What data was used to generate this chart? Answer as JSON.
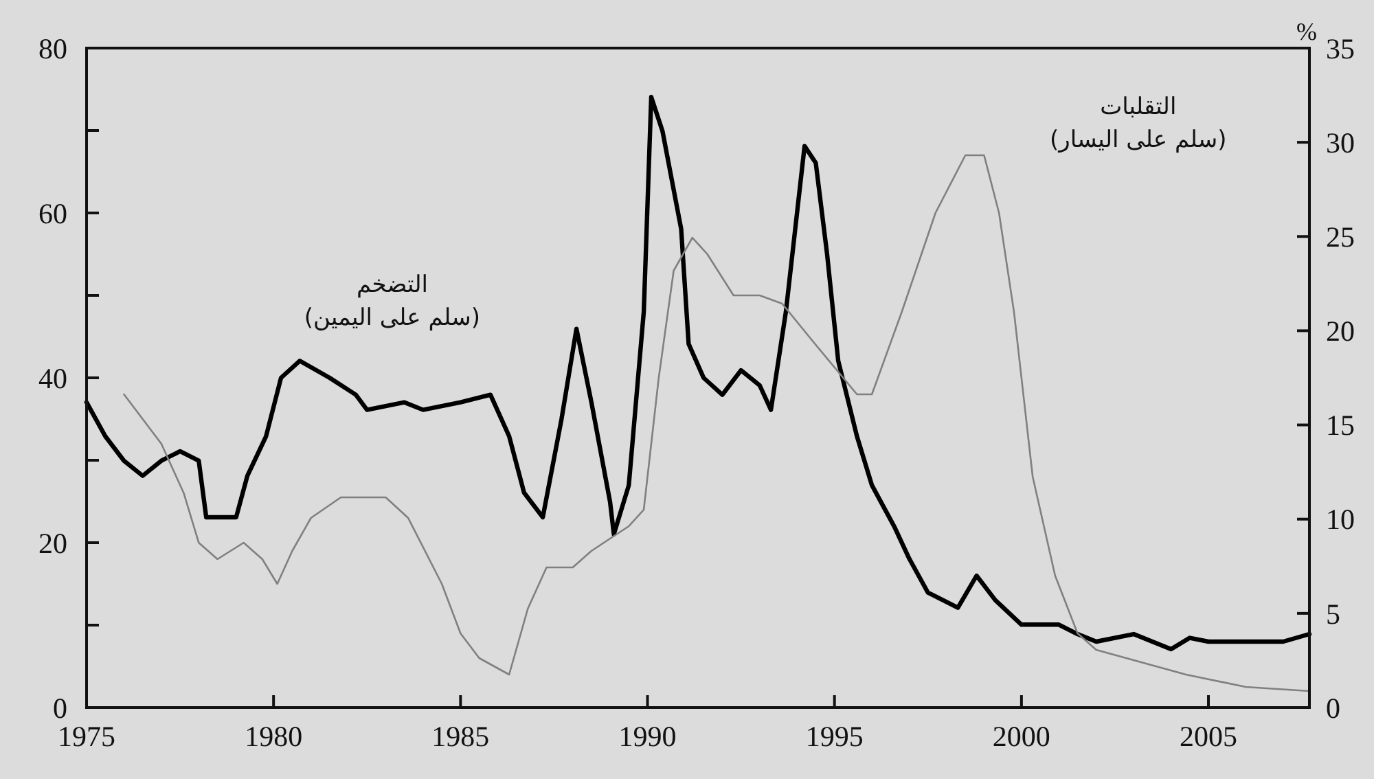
{
  "chart_data": {
    "type": "line",
    "xlim": [
      1975,
      2007.7
    ],
    "xticks": [
      1975,
      1980,
      1985,
      1990,
      1995,
      2000,
      2005
    ],
    "ylim": [
      0,
      80
    ],
    "yticks": [
      0,
      {
        "value": 10,
        "label": null
      },
      20,
      {
        "value": 30,
        "label": null
      },
      40,
      {
        "value": 50,
        "label": null
      },
      60,
      {
        "value": 70,
        "label": null
      },
      80
    ],
    "y2lim": [
      0,
      35
    ],
    "y2ticks": [
      0,
      5,
      10,
      15,
      20,
      25,
      30,
      35
    ],
    "y2label": "%",
    "grid": false,
    "legend": false,
    "line_style": "solid",
    "marker": "none",
    "series": [
      {
        "name": "التضخم\n(سلم على اليمين)",
        "color": "#000000",
        "axis": "y2",
        "x": [
          1975,
          1975.5,
          1976,
          1976.5,
          1977,
          1977.5,
          1978,
          1978.2,
          1979,
          1979.3,
          1979.8,
          1980.2,
          1980.7,
          1981.5,
          1982.2,
          1982.5,
          1983.5,
          1984,
          1985,
          1985.8,
          1986.3,
          1986.7,
          1987.2,
          1987.7,
          1988.1,
          1988.5,
          1989,
          1989.1,
          1989.5,
          1989.9,
          1990.1,
          1990.4,
          1990.9,
          1991.1,
          1991.5,
          1992,
          1992.5,
          1993,
          1993.3,
          1993.7,
          1994.2,
          1994.5,
          1994.8,
          1995.1,
          1995.6,
          1996,
          1996.6,
          1997,
          1997.5,
          1998.3,
          1998.8,
          1999.3,
          2000,
          2001,
          2001.5,
          2002,
          2003,
          2003.5,
          2004,
          2004.5,
          2005,
          2006,
          2007,
          2007.7
        ],
        "values": [
          16.2,
          14.4,
          13.1,
          12.3,
          13.1,
          13.6,
          13.1,
          10.1,
          10.1,
          12.3,
          14.4,
          17.5,
          18.4,
          17.5,
          16.6,
          15.8,
          16.2,
          15.8,
          16.2,
          16.6,
          14.4,
          11.4,
          10.1,
          15.3,
          20.1,
          16.2,
          10.9,
          9.2,
          11.8,
          21,
          32.4,
          30.6,
          25.4,
          19.3,
          17.5,
          16.6,
          17.9,
          17.1,
          15.8,
          21,
          29.8,
          28.9,
          24.1,
          18.4,
          14.4,
          11.8,
          9.6,
          7.9,
          6.1,
          5.3,
          7,
          5.7,
          4.4,
          4.4,
          3.9,
          3.5,
          3.9,
          3.5,
          3.1,
          3.7,
          3.5,
          3.5,
          3.5,
          3.9
        ]
      },
      {
        "name": "التقلبات\n(سلم على اليسار)",
        "color": "#808080",
        "x": [
          1976,
          1977,
          1977.6,
          1978,
          1978.5,
          1979.2,
          1979.7,
          1980.1,
          1980.5,
          1981,
          1981.8,
          1983,
          1983.6,
          1984.5,
          1985,
          1985.5,
          1986.3,
          1986.8,
          1987.3,
          1988,
          1988.5,
          1989.5,
          1989.9,
          1990.3,
          1990.7,
          1991.2,
          1991.6,
          1992.3,
          1993,
          1993.6,
          1994.5,
          1995.6,
          1996,
          1996.8,
          1997.7,
          1998.5,
          1999,
          1999.4,
          1999.8,
          2000.3,
          2000.9,
          2001.5,
          2002,
          2004.4,
          2006,
          2007.7
        ],
        "values": [
          38,
          32,
          26,
          20,
          18,
          20,
          18,
          15,
          19,
          23,
          25.5,
          25.5,
          23,
          15,
          9,
          6,
          4,
          12,
          17,
          17,
          19,
          22,
          24,
          40,
          53,
          57,
          55,
          50,
          50,
          49,
          44,
          38,
          38,
          48,
          60,
          67,
          67,
          60,
          48,
          28,
          16,
          9,
          7,
          4,
          2.5,
          2
        ]
      }
    ]
  }
}
